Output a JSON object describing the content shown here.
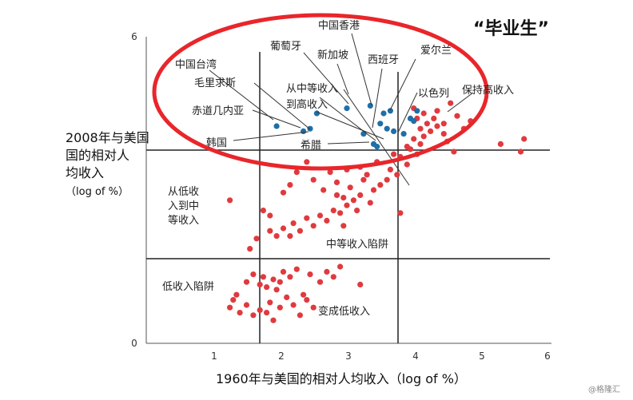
{
  "chart_data": {
    "type": "scatter",
    "title": "",
    "xlabel": "1960年与美国的相对人均收入（log of %）",
    "ylabel": [
      "2008年与美国",
      "国的相对人",
      "均收入",
      "（log of %）"
    ],
    "xlim": [
      0,
      6
    ],
    "ylim": [
      0,
      6
    ],
    "x_ticks": [
      "1",
      "2",
      "3",
      "4",
      "5",
      "6"
    ],
    "y_ticks": [
      "0",
      "6"
    ],
    "grid": false,
    "thresholds": {
      "x_low": 1.7,
      "x_high": 3.75,
      "y_low": 1.65,
      "y_high": 3.75
    },
    "series": [
      {
        "color": "#e03a3e",
        "points": [
          [
            1.25,
            0.7
          ],
          [
            1.3,
            0.85
          ],
          [
            1.4,
            0.6
          ],
          [
            1.5,
            0.75
          ],
          [
            1.35,
            0.95
          ],
          [
            1.6,
            0.55
          ],
          [
            1.7,
            0.65
          ],
          [
            1.8,
            0.6
          ],
          [
            1.9,
            0.45
          ],
          [
            1.85,
            0.8
          ],
          [
            2.0,
            0.7
          ],
          [
            2.1,
            0.9
          ],
          [
            2.2,
            0.75
          ],
          [
            2.3,
            0.55
          ],
          [
            2.4,
            0.85
          ],
          [
            2.5,
            0.7
          ],
          [
            2.35,
            0.95
          ],
          [
            1.95,
            1.05
          ],
          [
            1.5,
            1.2
          ],
          [
            1.6,
            1.35
          ],
          [
            1.7,
            1.15
          ],
          [
            1.75,
            1.3
          ],
          [
            1.8,
            1.1
          ],
          [
            1.9,
            1.25
          ],
          [
            2.0,
            1.2
          ],
          [
            2.05,
            1.4
          ],
          [
            2.15,
            1.3
          ],
          [
            2.25,
            1.45
          ],
          [
            2.45,
            1.35
          ],
          [
            2.6,
            1.2
          ],
          [
            2.7,
            1.4
          ],
          [
            2.8,
            1.3
          ],
          [
            2.9,
            1.5
          ],
          [
            3.2,
            1.15
          ],
          [
            1.55,
            1.85
          ],
          [
            1.65,
            2.05
          ],
          [
            1.85,
            2.2
          ],
          [
            1.95,
            2.1
          ],
          [
            2.05,
            2.25
          ],
          [
            2.15,
            2.1
          ],
          [
            2.2,
            2.35
          ],
          [
            2.3,
            2.2
          ],
          [
            2.4,
            2.45
          ],
          [
            2.5,
            2.3
          ],
          [
            2.6,
            2.5
          ],
          [
            2.7,
            2.4
          ],
          [
            2.8,
            2.6
          ],
          [
            2.9,
            2.55
          ],
          [
            3.0,
            2.7
          ],
          [
            2.95,
            2.3
          ],
          [
            3.1,
            2.8
          ],
          [
            3.2,
            2.9
          ],
          [
            3.35,
            2.75
          ],
          [
            3.4,
            3.0
          ],
          [
            3.5,
            3.1
          ],
          [
            3.6,
            3.2
          ],
          [
            3.3,
            3.3
          ],
          [
            3.2,
            3.45
          ],
          [
            3.45,
            3.55
          ],
          [
            3.65,
            3.4
          ],
          [
            3.75,
            3.3
          ],
          [
            3.9,
            3.5
          ],
          [
            2.85,
            2.9
          ],
          [
            3.05,
            3.05
          ],
          [
            1.25,
            2.8
          ],
          [
            1.75,
            2.6
          ],
          [
            1.85,
            2.5
          ],
          [
            2.05,
            2.95
          ],
          [
            2.15,
            3.1
          ],
          [
            2.25,
            3.35
          ],
          [
            2.5,
            3.2
          ],
          [
            2.65,
            3.0
          ],
          [
            2.75,
            3.35
          ],
          [
            2.85,
            3.15
          ],
          [
            3.8,
            2.55
          ],
          [
            3.15,
            2.6
          ],
          [
            2.95,
            2.85
          ],
          [
            3.25,
            3.2
          ],
          [
            3.0,
            3.4
          ],
          [
            2.4,
            3.55
          ],
          [
            3.7,
            3.7
          ],
          [
            3.8,
            3.65
          ],
          [
            3.9,
            3.85
          ],
          [
            4.0,
            4.0
          ],
          [
            3.95,
            3.8
          ],
          [
            4.05,
            3.7
          ],
          [
            4.1,
            4.2
          ],
          [
            4.15,
            4.05
          ],
          [
            4.2,
            4.3
          ],
          [
            4.25,
            4.15
          ],
          [
            4.3,
            4.4
          ],
          [
            4.35,
            4.25
          ],
          [
            4.45,
            4.1
          ],
          [
            4.5,
            3.95
          ],
          [
            4.6,
            3.75
          ],
          [
            4.05,
            4.4
          ],
          [
            4.15,
            4.5
          ],
          [
            4.35,
            4.55
          ],
          [
            4.45,
            4.3
          ],
          [
            4.65,
            4.45
          ],
          [
            4.75,
            4.2
          ],
          [
            4.85,
            4.35
          ],
          [
            4.55,
            4.7
          ],
          [
            4.0,
            4.6
          ],
          [
            4.1,
            3.9
          ],
          [
            5.3,
            3.9
          ],
          [
            5.6,
            3.75
          ],
          [
            5.65,
            4.0
          ]
        ]
      },
      {
        "color": "#1f6fa8",
        "points": [
          [
            1.95,
            4.25
          ],
          [
            2.35,
            4.15
          ],
          [
            2.45,
            4.2
          ],
          [
            3.0,
            4.6
          ],
          [
            3.25,
            4.1
          ],
          [
            3.35,
            4.65
          ],
          [
            3.45,
            3.85
          ],
          [
            3.5,
            4.3
          ],
          [
            3.55,
            4.5
          ],
          [
            3.6,
            4.2
          ],
          [
            3.65,
            4.55
          ],
          [
            3.7,
            4.15
          ],
          [
            3.85,
            4.1
          ],
          [
            3.95,
            4.4
          ],
          [
            4.0,
            4.35
          ],
          [
            4.05,
            4.55
          ],
          [
            3.4,
            3.9
          ],
          [
            2.55,
            4.5
          ]
        ]
      }
    ],
    "annotations": {
      "callout": "“毕业生”",
      "regions": {
        "upper_left": [
          "从低收",
          "入到中",
          "等收入"
        ],
        "middle_trap": "中等收入陷阱",
        "low_trap": "低收入陷阱",
        "became_low": "变成低收入",
        "mid_to_high": [
          "从中等收入",
          "到高收入"
        ],
        "stay_high": "保持高收入"
      },
      "countries": {
        "hk": "中国香港",
        "pt": "葡萄牙",
        "sg": "新加坡",
        "es": "西班牙",
        "ie": "爱尔兰",
        "tw": "中国台湾",
        "mu": "毛里求斯",
        "il": "以色列",
        "gq": "赤道几内亚",
        "kr": "韩国",
        "gr": "希腊"
      }
    },
    "colors": {
      "ellipse": "#e8262b",
      "red_points": "#e03a3e",
      "blue_points": "#1f6fa8",
      "lines": "#222222"
    }
  },
  "watermark": "@格隆汇"
}
